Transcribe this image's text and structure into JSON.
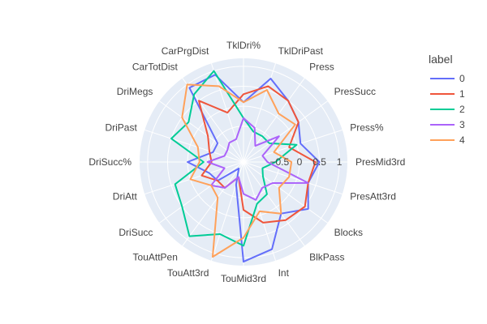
{
  "chart_data": {
    "type": "radar",
    "legend_title": "label",
    "legend_position": "right",
    "radial_ticks": [
      "−0.5",
      "0",
      "0.5",
      "1"
    ],
    "radial_range": [
      -1.4,
      1.2
    ],
    "axes": [
      "TklDri%",
      "TklDriPast",
      "Press",
      "PresSucc",
      "Press%",
      "PresMid3rd",
      "PresAtt3rd",
      "Blocks",
      "BlkPass",
      "Int",
      "TouMid3rd",
      "TouAtt3rd",
      "TouAttPen",
      "DriSucc",
      "DriAtt",
      "DriSucc%",
      "DriPast",
      "DriMegs",
      "CarTotDist",
      "CarPrgDist"
    ],
    "series": [
      {
        "name": "0",
        "color": "#636efa",
        "values": [
          0.1,
          0.8,
          0.5,
          0.3,
          0.1,
          0.5,
          0.3,
          0.6,
          0.2,
          0.9,
          1.1,
          -0.8,
          -1.2,
          -0.6,
          -0.5,
          0.0,
          -0.6,
          -0.6,
          0.9,
          0.9
        ]
      },
      {
        "name": "1",
        "color": "#ef553b",
        "values": [
          0.3,
          0.6,
          0.5,
          0.3,
          -0.2,
          0.4,
          0.3,
          0.5,
          0.4,
          0.2,
          -0.2,
          -1.0,
          -0.6,
          -0.6,
          -0.3,
          -0.6,
          -0.5,
          -0.3,
          0.5,
          -0.1
        ]
      },
      {
        "name": "2",
        "color": "#00cc96",
        "values": [
          -0.3,
          -0.6,
          -0.6,
          -0.6,
          0.0,
          -0.6,
          -0.9,
          -0.8,
          -0.4,
          -0.3,
          0.7,
          0.5,
          0.9,
          0.5,
          0.4,
          -0.4,
          0.5,
          0.3,
          0.7,
          1.0
        ]
      },
      {
        "name": "3",
        "color": "#ab63fa",
        "values": [
          -0.3,
          -0.5,
          -0.9,
          -0.3,
          -0.9,
          -0.8,
          0.3,
          -0.5,
          -0.6,
          -0.4,
          -0.6,
          -1.0,
          -0.6,
          -0.4,
          -0.9,
          -0.5,
          -0.9,
          -0.9,
          -0.8,
          -0.8
        ]
      },
      {
        "name": "4",
        "color": "#ffa15a",
        "values": [
          0.1,
          0.5,
          0.1,
          0.2,
          -0.6,
          -0.2,
          -0.2,
          -0.3,
          0.2,
          -0.1,
          0.5,
          1.1,
          -0.3,
          -0.4,
          0.0,
          -0.3,
          -0.2,
          0.5,
          1.0,
          0.6
        ]
      }
    ]
  }
}
